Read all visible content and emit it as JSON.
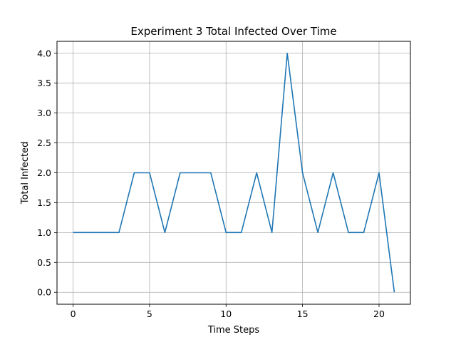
{
  "chart_data": {
    "type": "line",
    "title": "Experiment 3 Total Infected Over Time",
    "xlabel": "Time Steps",
    "ylabel": "Total Infected",
    "xlim": [
      -1.05,
      22.05
    ],
    "ylim": [
      -0.2,
      4.2
    ],
    "xticks": [
      0,
      5,
      10,
      15,
      20
    ],
    "yticks": [
      0.0,
      0.5,
      1.0,
      1.5,
      2.0,
      2.5,
      3.0,
      3.5,
      4.0
    ],
    "xtick_labels": [
      "0",
      "5",
      "10",
      "15",
      "20"
    ],
    "ytick_labels": [
      "0.0",
      "0.5",
      "1.0",
      "1.5",
      "2.0",
      "2.5",
      "3.0",
      "3.5",
      "4.0"
    ],
    "grid": true,
    "line_color": "#1f77b4",
    "series": [
      {
        "x": [
          0,
          1,
          2,
          3,
          4,
          5,
          6,
          7,
          8,
          9,
          10,
          11,
          12,
          13,
          14,
          15,
          16,
          17,
          18,
          19,
          20,
          21
        ],
        "values": [
          1,
          1,
          1,
          1,
          2,
          2,
          1,
          2,
          2,
          2,
          1,
          1,
          2,
          1,
          4,
          2,
          1,
          2,
          1,
          1,
          2,
          0
        ]
      }
    ]
  }
}
